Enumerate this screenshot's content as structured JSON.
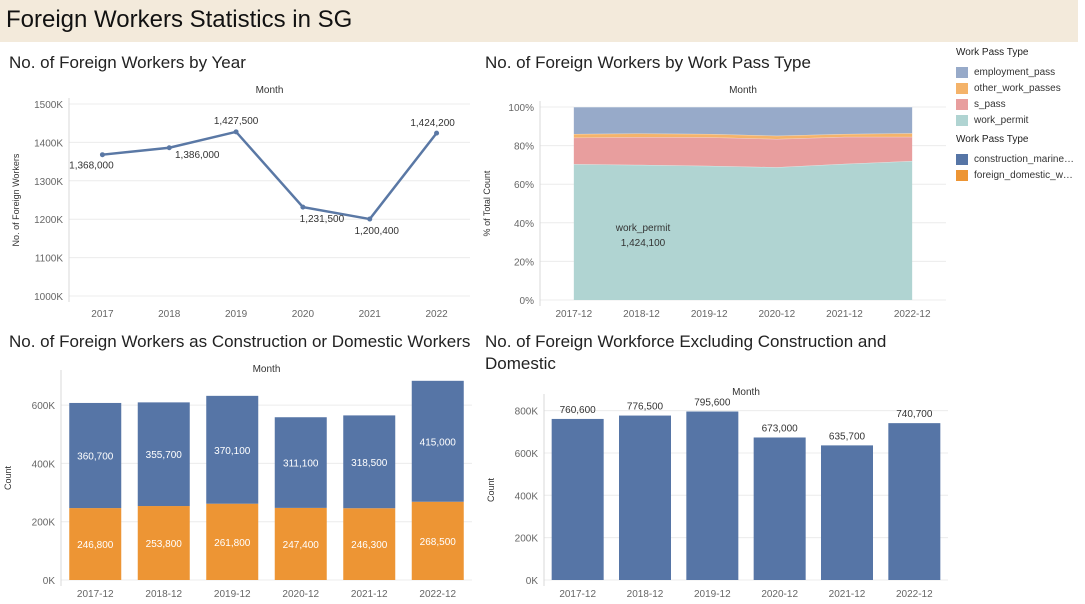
{
  "dashboard_title": "Foreign Workers Statistics in SG",
  "colors": {
    "line": "#5a78a5",
    "employment_pass": "#97aac9",
    "other_work_passes": "#f4b36a",
    "s_pass": "#e89e9e",
    "work_permit": "#b0d4d2",
    "construction": "#5675a6",
    "domestic": "#ed9534",
    "grid": "#ececec",
    "axis_text": "#666666"
  },
  "legend": {
    "group1_title": "Work Pass Type",
    "group1_items": [
      {
        "label": "employment_pass",
        "color_key": "employment_pass"
      },
      {
        "label": "other_work_passes",
        "color_key": "other_work_passes"
      },
      {
        "label": "s_pass",
        "color_key": "s_pass"
      },
      {
        "label": "work_permit",
        "color_key": "work_permit"
      }
    ],
    "group2_title": "Work Pass Type",
    "group2_items": [
      {
        "label": "construction_marine…",
        "color_key": "construction"
      },
      {
        "label": "foreign_domestic_w…",
        "color_key": "domestic"
      }
    ]
  },
  "chart_data": [
    {
      "id": "by_year",
      "type": "line",
      "title": "No. of Foreign Workers by Year",
      "header": "Month",
      "ylabel": "No. of Foreign Workers",
      "categories": [
        "2017",
        "2018",
        "2019",
        "2020",
        "2021",
        "2022"
      ],
      "values": [
        1368000,
        1386000,
        1427500,
        1231500,
        1200400,
        1424200
      ],
      "data_labels": [
        "1,368,000",
        "1,386,000",
        "1,427,500",
        "1,231,500",
        "1,200,400",
        "1,424,200"
      ],
      "ylim": [
        1000000,
        1500000
      ],
      "yticks": [
        1000000,
        1100000,
        1200000,
        1300000,
        1400000,
        1500000
      ],
      "ytick_labels": [
        "1000K",
        "1100K",
        "1200K",
        "1300K",
        "1400K",
        "1500K"
      ]
    },
    {
      "id": "by_pass_type",
      "type": "area",
      "title": "No. of Foreign Workers by Work Pass Type",
      "header": "Month",
      "ylabel": "% of Total Count",
      "categories": [
        "2017-12",
        "2018-12",
        "2019-12",
        "2020-12",
        "2021-12",
        "2022-12"
      ],
      "series": [
        {
          "name": "work_permit",
          "color_key": "work_permit",
          "values": [
            70.4,
            70.0,
            69.5,
            68.8,
            70.5,
            72.0
          ]
        },
        {
          "name": "s_pass",
          "color_key": "s_pass",
          "values": [
            13.7,
            14.4,
            14.8,
            14.6,
            14.0,
            12.5
          ]
        },
        {
          "name": "other_work_passes",
          "color_key": "other_work_passes",
          "values": [
            1.9,
            1.9,
            1.7,
            1.7,
            1.5,
            1.9
          ]
        },
        {
          "name": "employment_pass",
          "color_key": "employment_pass",
          "values": [
            14.0,
            13.7,
            14.0,
            14.9,
            14.0,
            13.6
          ]
        }
      ],
      "annotation": {
        "label": "work_permit",
        "value": "1,424,100"
      },
      "ylim": [
        0,
        100
      ],
      "yticks": [
        0,
        20,
        40,
        60,
        80,
        100
      ],
      "ytick_labels": [
        "0%",
        "20%",
        "40%",
        "60%",
        "80%",
        "100%"
      ]
    },
    {
      "id": "construction_domestic",
      "type": "bar",
      "title": "No. of Foreign Workers as Construction or Domestic Workers",
      "header": "Month",
      "ylabel": "Count",
      "categories": [
        "2017-12",
        "2018-12",
        "2019-12",
        "2020-12",
        "2021-12",
        "2022-12"
      ],
      "series": [
        {
          "name": "foreign_domestic_w…",
          "color_key": "domestic",
          "values": [
            246800,
            253800,
            261800,
            247400,
            246300,
            268500
          ],
          "labels": [
            "246,800",
            "253,800",
            "261,800",
            "247,400",
            "246,300",
            "268,500"
          ]
        },
        {
          "name": "construction_marine…",
          "color_key": "construction",
          "values": [
            360700,
            355700,
            370100,
            311100,
            318500,
            415000
          ],
          "labels": [
            "360,700",
            "355,700",
            "370,100",
            "311,100",
            "318,500",
            "415,000"
          ]
        }
      ],
      "ylim": [
        0,
        700000
      ],
      "yticks": [
        0,
        200000,
        400000,
        600000
      ],
      "ytick_labels": [
        "0K",
        "200K",
        "400K",
        "600K"
      ]
    },
    {
      "id": "excluding",
      "type": "bar",
      "title": "No. of Foreign Workforce Excluding Construction and Domestic",
      "header": "Month",
      "ylabel": "Count",
      "categories": [
        "2017-12",
        "2018-12",
        "2019-12",
        "2020-12",
        "2021-12",
        "2022-12"
      ],
      "values": [
        760600,
        776500,
        795600,
        673000,
        635700,
        740700
      ],
      "data_labels": [
        "760,600",
        "776,500",
        "795,600",
        "673,000",
        "635,700",
        "740,700"
      ],
      "ylim": [
        0,
        850000
      ],
      "yticks": [
        0,
        200000,
        400000,
        600000,
        800000
      ],
      "ytick_labels": [
        "0K",
        "200K",
        "400K",
        "600K",
        "800K"
      ]
    }
  ]
}
